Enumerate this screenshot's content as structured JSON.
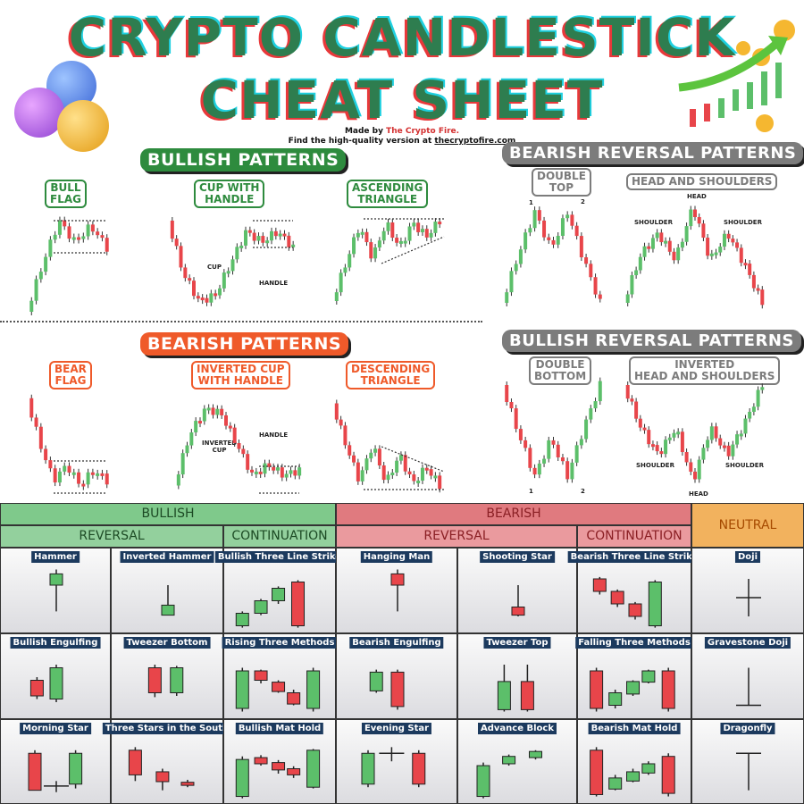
{
  "title_line1": "CRYPTO CANDLESTICK",
  "title_line2": "CHEAT SHEET",
  "credit": {
    "made_by_prefix": "Made by ",
    "made_by_name": "The Crypto Fire.",
    "find_prefix": "Find the high-quality version at ",
    "find_url": "thecryptofire.com"
  },
  "sections": {
    "bullish_patterns": "BULLISH PATTERNS",
    "bearish_patterns": "BEARISH PATTERNS",
    "bearish_reversal": "BEARISH REVERSAL PATTERNS",
    "bullish_reversal": "BULLISH REVERSAL PATTERNS"
  },
  "patterns": {
    "bull_flag": "BULL\nFLAG",
    "cup_handle": "CUP WITH\nHANDLE",
    "ascending": "ASCENDING\nTRIANGLE",
    "bear_flag": "BEAR\nFLAG",
    "inv_cup": "INVERTED CUP\nWITH HANDLE",
    "descending": "DESCENDING\nTRIANGLE",
    "double_top": "DOUBLE\nTOP",
    "head_shoulders": "HEAD AND SHOULDERS",
    "double_bottom": "DOUBLE\nBOTTOM",
    "inv_head_shoulders": "INVERTED\nHEAD AND SHOULDERS"
  },
  "annotations": {
    "cup": "CUP",
    "handle": "HANDLE",
    "inverted_cup": "INVERTED\nCUP",
    "handle2": "HANDLE",
    "head": "HEAD",
    "shoulder_l": "SHOULDER",
    "shoulder_r": "SHOULDER",
    "n1": "1",
    "n2": "2",
    "n1b": "1",
    "n2b": "2",
    "shoulder_bl": "SHOULDER",
    "shoulder_br": "SHOULDER",
    "head_b": "HEAD"
  },
  "table": {
    "bullish": "BULLISH",
    "bearish": "BEARISH",
    "neutral": "NEUTRAL",
    "reversal_bull": "REVERSAL",
    "continuation_bull": "CONTINUATION",
    "reversal_bear": "REVERSAL",
    "continuation_bear": "CONTINUATION",
    "rows": [
      [
        "Hammer",
        "Inverted Hammer",
        "Bullish Three Line Strike",
        "Hanging Man",
        "Shooting Star",
        "Bearish Three Line Strike",
        "Doji"
      ],
      [
        "Bullish Engulfing",
        "Tweezer Bottom",
        "Rising Three Methods",
        "Bearish Engulfing",
        "Tweezer Top",
        "Falling Three Methods",
        "Gravestone Doji"
      ],
      [
        "Morning Star",
        "Three Stars in the South",
        "Bullish Mat Hold",
        "Evening Star",
        "Advance Block",
        "Bearish Mat Hold",
        "Dragonfly"
      ]
    ]
  },
  "colors": {
    "bull": "#5cbf6a",
    "bear": "#e8454a",
    "green_header": "#7fc98b",
    "red_header": "#e07a7f",
    "neutral_header": "#f2b25e"
  }
}
